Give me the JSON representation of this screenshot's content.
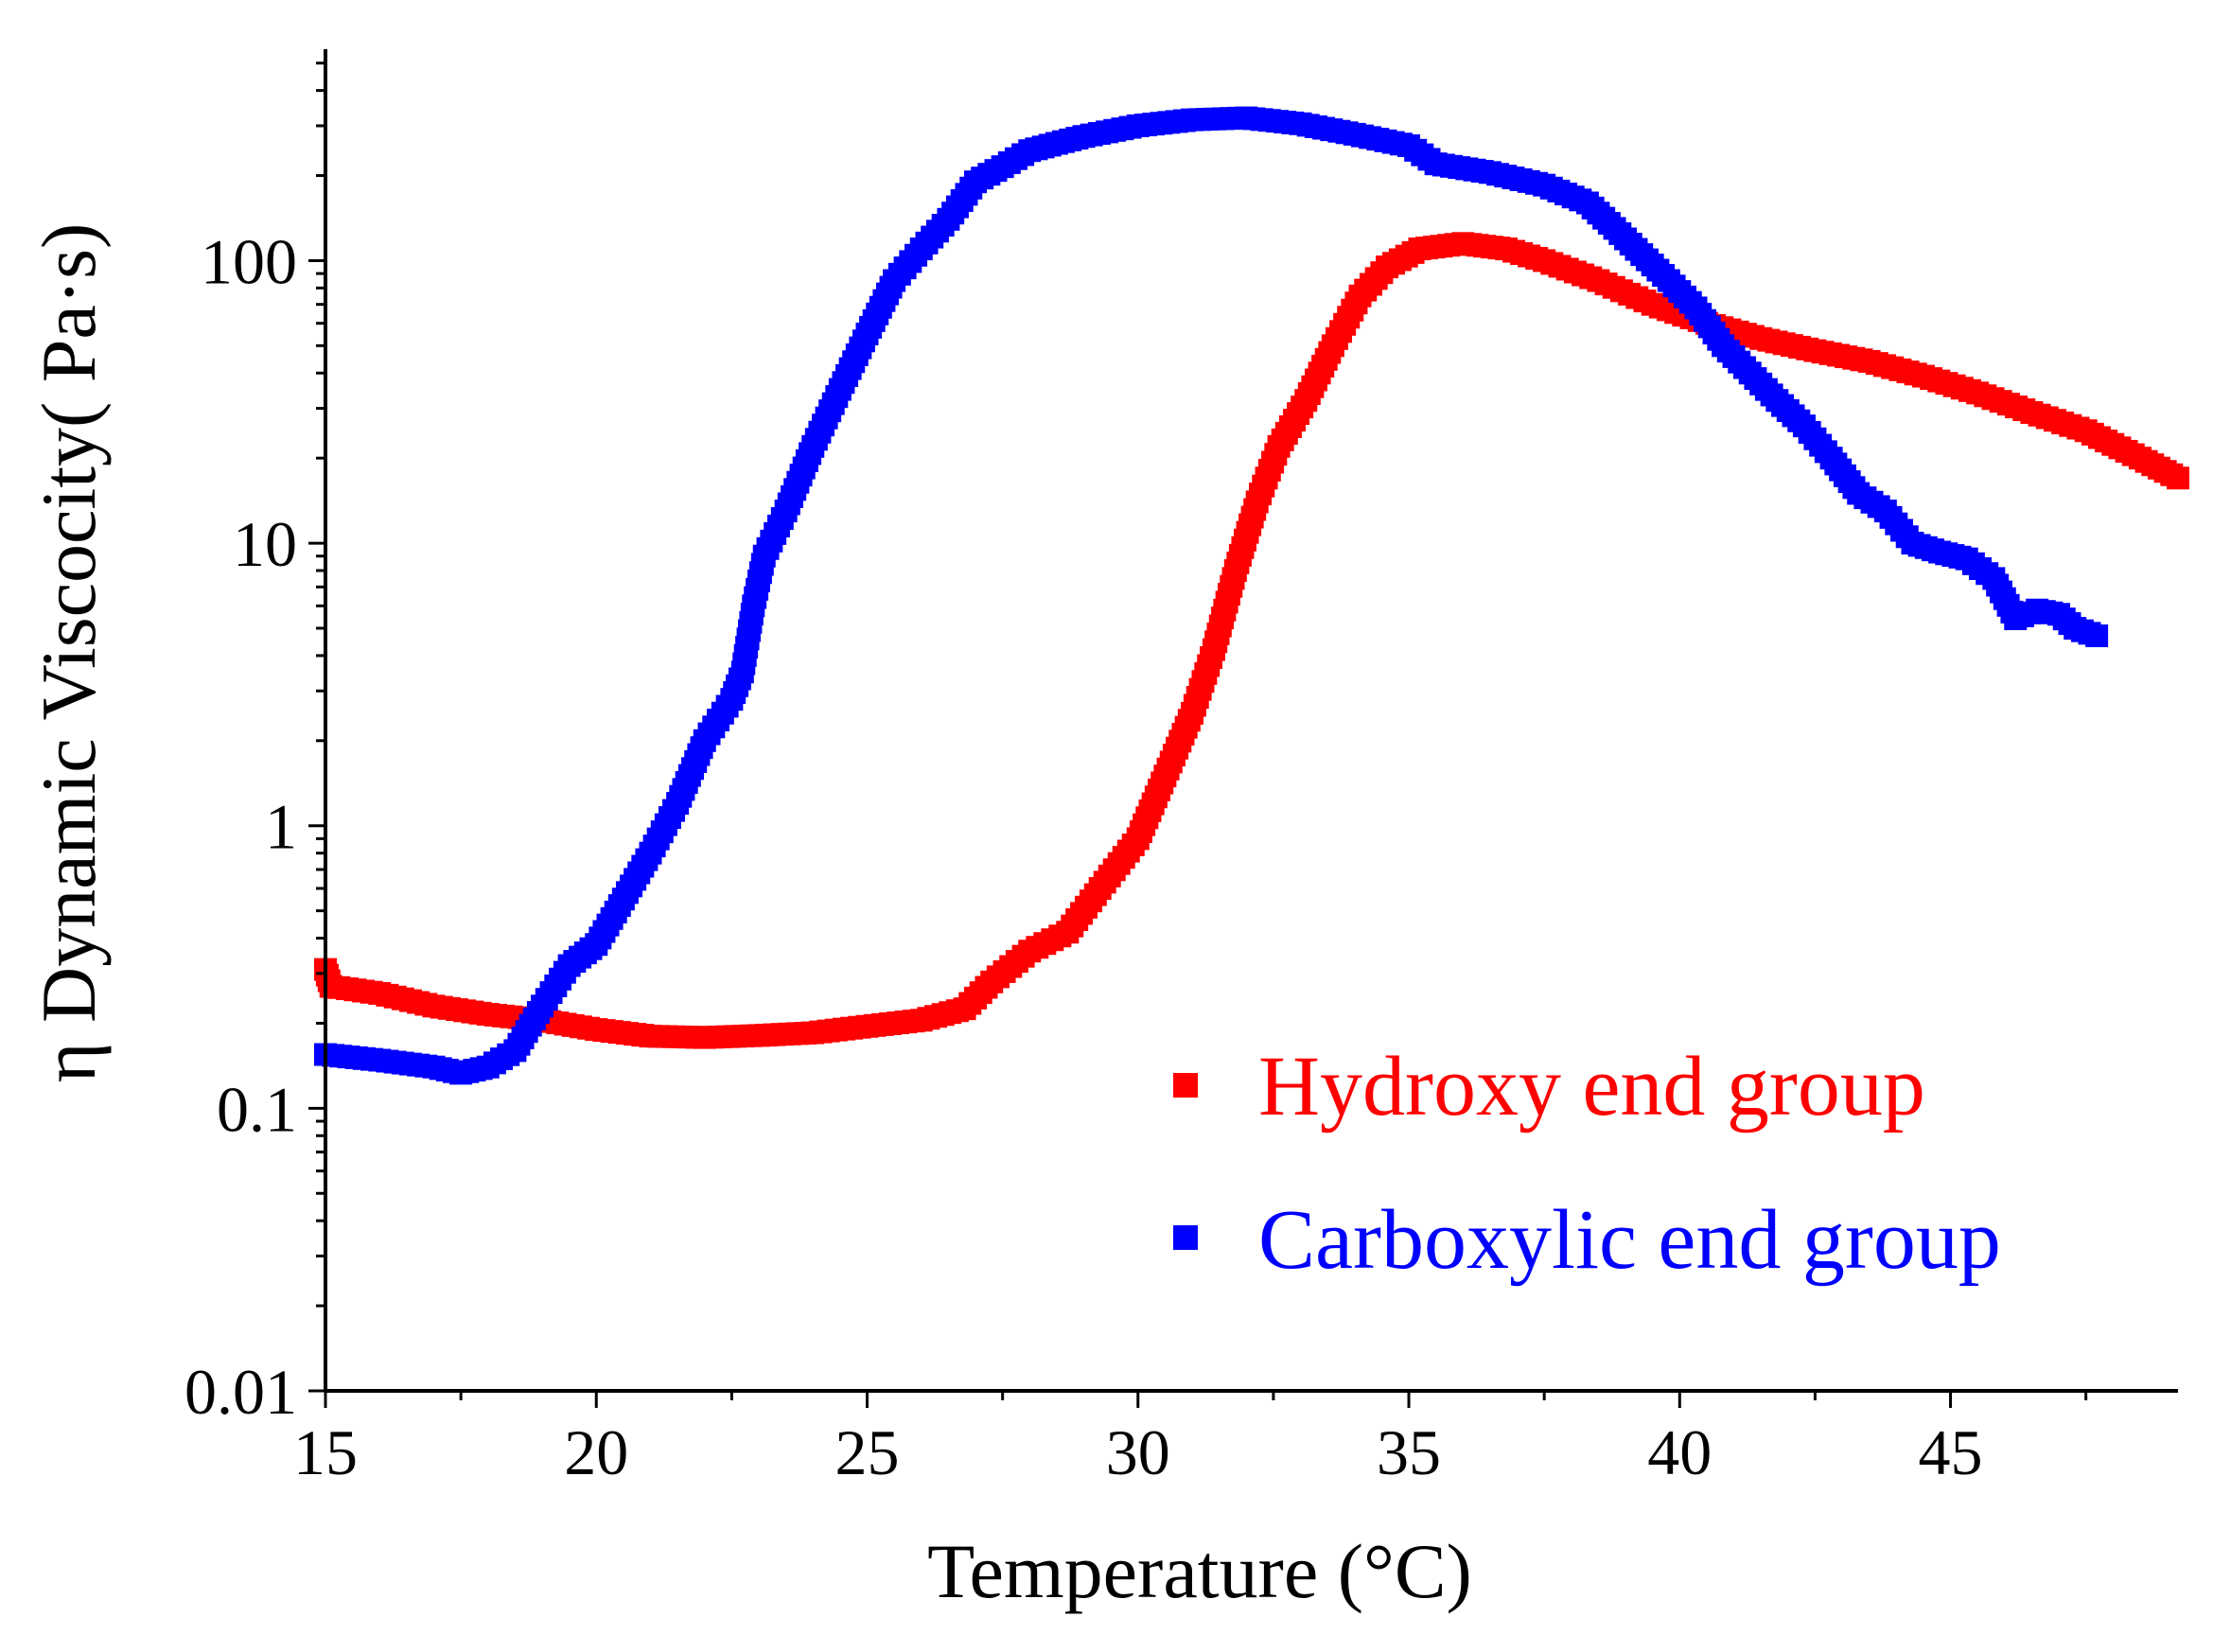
{
  "chart_data": {
    "type": "scatter",
    "title": "",
    "xlabel": "Temperature (°C)",
    "ylabel": "η Dynamic Viscocity( Pa·s)",
    "xlim": [
      15,
      49.2
    ],
    "ylim": [
      0.01,
      560
    ],
    "yscale": "log",
    "x_ticks": [
      15,
      20,
      25,
      30,
      35,
      40,
      45
    ],
    "x_tick_labels": [
      "15",
      "20",
      "25",
      "30",
      "35",
      "40",
      "45"
    ],
    "y_ticks": [
      0.01,
      0.1,
      1,
      10,
      100
    ],
    "y_tick_labels": [
      "0.01",
      "0.1",
      "1",
      "10",
      "100"
    ],
    "legend_position": "lower-right",
    "series": [
      {
        "name": "Hydroxy end group",
        "color": "#ff0000",
        "marker": "square",
        "points": [
          [
            15,
            0.31
          ],
          [
            15.1,
            0.27
          ],
          [
            16,
            0.255
          ],
          [
            17,
            0.23
          ],
          [
            18,
            0.215
          ],
          [
            19,
            0.205
          ],
          [
            20,
            0.19
          ],
          [
            21,
            0.18
          ],
          [
            22,
            0.178
          ],
          [
            23,
            0.181
          ],
          [
            24,
            0.185
          ],
          [
            25,
            0.195
          ],
          [
            26,
            0.205
          ],
          [
            26.8,
            0.225
          ],
          [
            27.3,
            0.28
          ],
          [
            28,
            0.36
          ],
          [
            28.7,
            0.42
          ],
          [
            29.3,
            0.6
          ],
          [
            30,
            0.9
          ],
          [
            30.5,
            1.5
          ],
          [
            31,
            2.5
          ],
          [
            31.4,
            4.2
          ],
          [
            31.8,
            8
          ],
          [
            32.2,
            14
          ],
          [
            32.6,
            22
          ],
          [
            33.1,
            32
          ],
          [
            33.6,
            50
          ],
          [
            34.1,
            75
          ],
          [
            34.6,
            95
          ],
          [
            35.2,
            110
          ],
          [
            36,
            115
          ],
          [
            36.8,
            110
          ],
          [
            37.5,
            100
          ],
          [
            38.5,
            85
          ],
          [
            39.5,
            70
          ],
          [
            40.5,
            60
          ],
          [
            41.5,
            53
          ],
          [
            42.5,
            48
          ],
          [
            43.5,
            44
          ],
          [
            44.5,
            39
          ],
          [
            45.5,
            34
          ],
          [
            46.5,
            29
          ],
          [
            47.5,
            25
          ],
          [
            48.5,
            20
          ],
          [
            49.2,
            17
          ]
        ]
      },
      {
        "name": "Carboxylic end group",
        "color": "#0000ff",
        "marker": "square",
        "points": [
          [
            15,
            0.155
          ],
          [
            16,
            0.148
          ],
          [
            17,
            0.14
          ],
          [
            17.5,
            0.133
          ],
          [
            18,
            0.14
          ],
          [
            18.5,
            0.16
          ],
          [
            19,
            0.23
          ],
          [
            19.5,
            0.32
          ],
          [
            20,
            0.38
          ],
          [
            20.5,
            0.55
          ],
          [
            21,
            0.8
          ],
          [
            21.5,
            1.2
          ],
          [
            22,
            2
          ],
          [
            22.5,
            2.8
          ],
          [
            22.7,
            3.5
          ],
          [
            22.9,
            6
          ],
          [
            23.1,
            9
          ],
          [
            23.5,
            13
          ],
          [
            24,
            22
          ],
          [
            24.5,
            35
          ],
          [
            25,
            55
          ],
          [
            25.5,
            85
          ],
          [
            26,
            110
          ],
          [
            26.5,
            140
          ],
          [
            27,
            190
          ],
          [
            27.5,
            215
          ],
          [
            28,
            245
          ],
          [
            28.5,
            260
          ],
          [
            29,
            275
          ],
          [
            30,
            300
          ],
          [
            31,
            315
          ],
          [
            32,
            320
          ],
          [
            33,
            305
          ],
          [
            34,
            280
          ],
          [
            35,
            255
          ],
          [
            35.5,
            220
          ],
          [
            36.5,
            205
          ],
          [
            37.5,
            185
          ],
          [
            38.3,
            160
          ],
          [
            38.8,
            130
          ],
          [
            39.3,
            105
          ],
          [
            39.8,
            85
          ],
          [
            40.3,
            68
          ],
          [
            40.8,
            50
          ],
          [
            41.3,
            40
          ],
          [
            41.8,
            32
          ],
          [
            42.3,
            26
          ],
          [
            42.8,
            20
          ],
          [
            43.3,
            15
          ],
          [
            43.8,
            13
          ],
          [
            44.3,
            10
          ],
          [
            44.8,
            9.3
          ],
          [
            45.3,
            8.8
          ],
          [
            45.8,
            7.5
          ],
          [
            46.2,
            5.4
          ],
          [
            46.6,
            5.8
          ],
          [
            47,
            5.6
          ],
          [
            47.3,
            5
          ],
          [
            47.7,
            4.7
          ]
        ]
      }
    ]
  }
}
